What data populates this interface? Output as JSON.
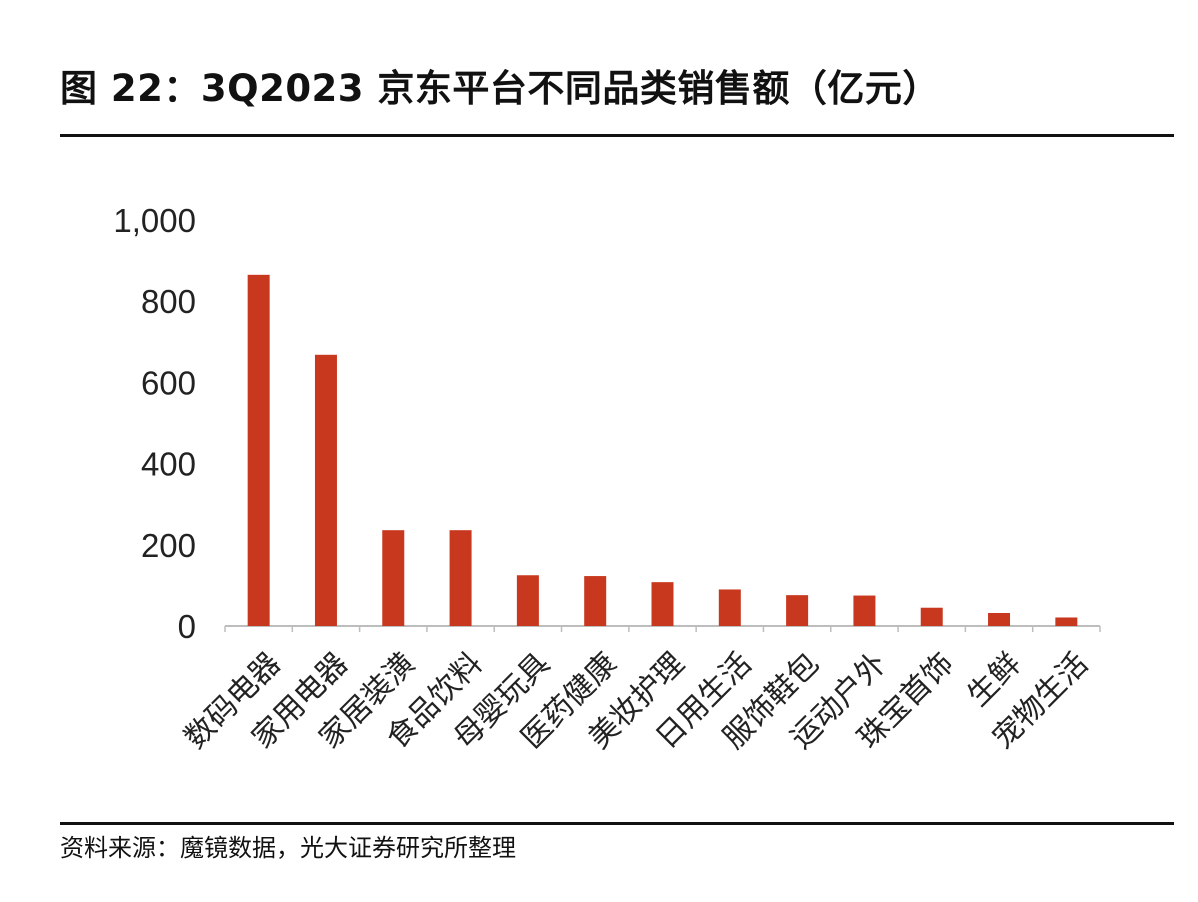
{
  "title": "图 22：3Q2023 京东平台不同品类销售额（亿元）",
  "source": "资料来源：魔镜数据，光大证券研究所整理",
  "colors": {
    "bar": "#C8381F",
    "axis": "#bdbdbd",
    "rule": "#111111"
  },
  "chart_data": {
    "type": "bar",
    "title": "图 22：3Q2023 京东平台不同品类销售额（亿元）",
    "xlabel": "",
    "ylabel": "",
    "categories": [
      "数码电器",
      "家用电器",
      "家居装潢",
      "食品饮料",
      "母婴玩具",
      "医药健康",
      "美妆护理",
      "日用生活",
      "服饰鞋包",
      "运动户外",
      "珠宝首饰",
      "生鲜",
      "宠物生活"
    ],
    "values": [
      865,
      668,
      236,
      236,
      125,
      123,
      108,
      90,
      76,
      75,
      45,
      32,
      21
    ],
    "ylim": [
      0,
      1000
    ],
    "yticks": [
      0,
      200,
      400,
      600,
      800,
      1000
    ],
    "ytick_labels": [
      "0",
      "200",
      "400",
      "600",
      "800",
      "1,000"
    ],
    "grid": false,
    "legend": "none"
  }
}
